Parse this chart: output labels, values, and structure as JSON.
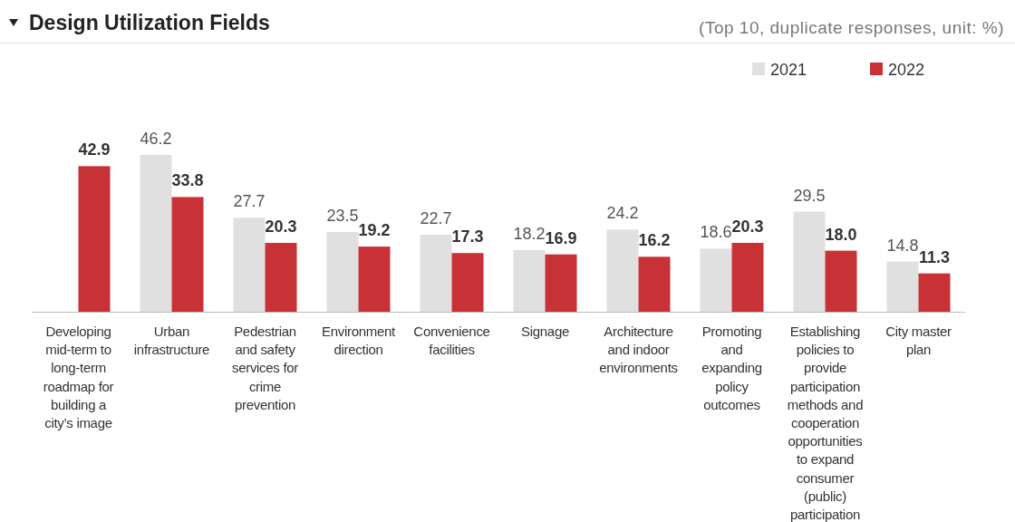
{
  "chart_data": {
    "type": "bar",
    "title": "Design Utilization Fields",
    "subtitle": "(Top 10, duplicate responses, unit: %)",
    "categories": [
      "Developing mid-term to long-term roadmap for building a city’s image",
      "Urban infrastructure",
      "Pedestrian and safety services for crime prevention",
      "Environment direction",
      "Convenience facilities",
      "Signage",
      "Architecture and indoor environments",
      "Promoting and expanding policy outcomes",
      "Establishing policies to provide participation methods and cooperation opportunities to expand consumer (public) participation",
      "City master plan"
    ],
    "series": [
      {
        "name": "2021",
        "color": "#e0e0e0",
        "values": [
          null,
          46.2,
          27.7,
          23.5,
          22.7,
          18.2,
          24.2,
          18.6,
          29.5,
          14.8
        ],
        "value_labels": [
          null,
          "46.2",
          "27.7",
          "23.5",
          "22.7",
          "18.2",
          "24.2",
          "18.6",
          "29.5",
          "14.8"
        ]
      },
      {
        "name": "2022",
        "color": "#c83236",
        "values": [
          42.9,
          33.8,
          20.3,
          19.2,
          17.3,
          16.9,
          16.2,
          20.3,
          18.0,
          11.3
        ],
        "value_labels": [
          "42.9",
          "33.8",
          "20.3",
          "19.2",
          "17.3",
          "16.9",
          "16.2",
          "20.3",
          "18.0",
          "11.3"
        ]
      }
    ],
    "legend": "top right"
  }
}
